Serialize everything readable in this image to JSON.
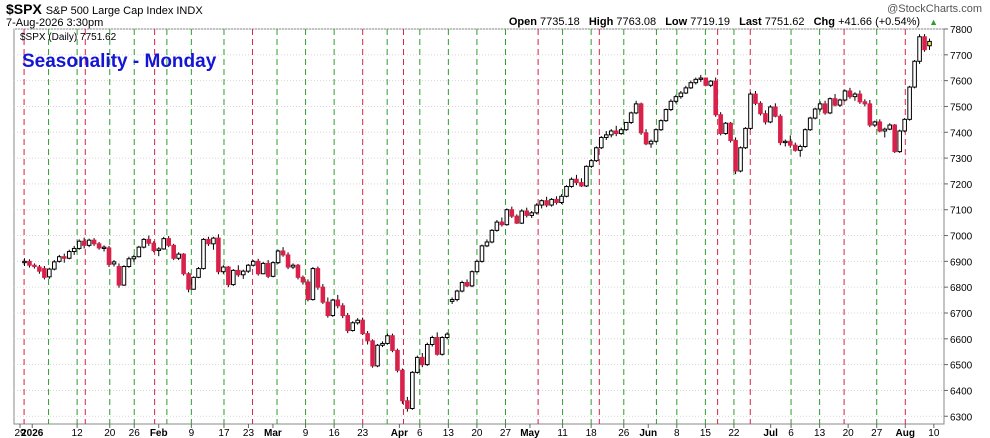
{
  "header": {
    "symbol": "$SPX",
    "description": "S&P 500 Large Cap Index INDX",
    "datetime": "7-Aug-2026 3:30pm",
    "watermark": "@StockCharts.com",
    "open_label": "Open",
    "open": "7735.18",
    "high_label": "High",
    "high": "7763.08",
    "low_label": "Low",
    "low": "7719.19",
    "last_label": "Last",
    "last": "7751.62",
    "chg_label": "Chg",
    "chg": "+41.66 (+0.54%)",
    "arrow": "▲"
  },
  "chart_data": {
    "type": "candlestick",
    "title": "Seasonality - Monday",
    "legend": "$SPX (Daily) 7751.62",
    "title_color": "#1515d6",
    "up_color": "#ffffff",
    "down_color": "#d9214a",
    "ylim": [
      6270,
      7800
    ],
    "yticks": [
      6300,
      6400,
      6500,
      6600,
      6700,
      6800,
      6900,
      7000,
      7100,
      7200,
      7300,
      7400,
      7500,
      7600,
      7700,
      7800
    ],
    "xticks": [
      {
        "label": "29",
        "day": 0
      },
      {
        "label": "2026",
        "day": 3,
        "bold": true
      },
      {
        "label": "12",
        "day": 14
      },
      {
        "label": "20",
        "day": 22
      },
      {
        "label": "26",
        "day": 28
      },
      {
        "label": "Feb",
        "day": 34,
        "bold": true
      },
      {
        "label": "9",
        "day": 42
      },
      {
        "label": "17",
        "day": 50
      },
      {
        "label": "23",
        "day": 56
      },
      {
        "label": "Mar",
        "day": 62,
        "bold": true
      },
      {
        "label": "9",
        "day": 70
      },
      {
        "label": "16",
        "day": 77
      },
      {
        "label": "23",
        "day": 84
      },
      {
        "label": "Apr",
        "day": 93,
        "bold": true
      },
      {
        "label": "6",
        "day": 98
      },
      {
        "label": "13",
        "day": 105
      },
      {
        "label": "20",
        "day": 112
      },
      {
        "label": "27",
        "day": 119
      },
      {
        "label": "May",
        "day": 125,
        "bold": true
      },
      {
        "label": "11",
        "day": 133
      },
      {
        "label": "18",
        "day": 140
      },
      {
        "label": "26",
        "day": 148
      },
      {
        "label": "Jun",
        "day": 154,
        "bold": true
      },
      {
        "label": "8",
        "day": 161
      },
      {
        "label": "15",
        "day": 168
      },
      {
        "label": "22",
        "day": 175
      },
      {
        "label": "Jul",
        "day": 184,
        "bold": true
      },
      {
        "label": "6",
        "day": 189
      },
      {
        "label": "13",
        "day": 196
      },
      {
        "label": "20",
        "day": 203
      },
      {
        "label": "27",
        "day": 210
      },
      {
        "label": "Aug",
        "day": 217,
        "bold": true
      },
      {
        "label": "10",
        "day": 224
      }
    ],
    "red_verticals": [
      1,
      16,
      33,
      57,
      84,
      94,
      127,
      142,
      171,
      179,
      202,
      217
    ],
    "green_verticals": [
      7,
      14,
      22,
      28,
      36,
      42,
      50,
      63,
      70,
      77,
      90,
      98,
      105,
      112,
      119,
      133,
      140,
      148,
      156,
      161,
      168,
      175,
      189,
      196,
      210
    ],
    "candles": [
      [
        0,
        6895,
        6912,
        6882,
        6900
      ],
      [
        1,
        6900,
        6908,
        6876,
        6885
      ],
      [
        2,
        6885,
        6892,
        6872,
        6880
      ],
      [
        3,
        6878,
        6886,
        6852,
        6862
      ],
      [
        4,
        6872,
        6882,
        6830,
        6838
      ],
      [
        5,
        6840,
        6875,
        6832,
        6870
      ],
      [
        6,
        6870,
        6905,
        6865,
        6898
      ],
      [
        7,
        6900,
        6925,
        6895,
        6918
      ],
      [
        8,
        6918,
        6930,
        6895,
        6912
      ],
      [
        9,
        6912,
        6945,
        6908,
        6938
      ],
      [
        10,
        6938,
        6960,
        6925,
        6950
      ],
      [
        11,
        6950,
        6985,
        6945,
        6978
      ],
      [
        12,
        6978,
        6992,
        6950,
        6962
      ],
      [
        13,
        6962,
        6988,
        6955,
        6982
      ],
      [
        14,
        6982,
        6990,
        6960,
        6968
      ],
      [
        15,
        6968,
        6975,
        6945,
        6952
      ],
      [
        16,
        6950,
        6962,
        6938,
        6955
      ],
      [
        17,
        6952,
        6960,
        6878,
        6888
      ],
      [
        18,
        6890,
        6905,
        6880,
        6898
      ],
      [
        19,
        6880,
        6892,
        6798,
        6808
      ],
      [
        20,
        6808,
        6885,
        6805,
        6880
      ],
      [
        21,
        6880,
        6918,
        6875,
        6910
      ],
      [
        22,
        6910,
        6925,
        6898,
        6918
      ],
      [
        23,
        6918,
        6960,
        6915,
        6955
      ],
      [
        24,
        6955,
        6990,
        6950,
        6985
      ],
      [
        25,
        6985,
        7000,
        6960,
        6970
      ],
      [
        26,
        6970,
        6978,
        6935,
        6942
      ],
      [
        27,
        6942,
        6955,
        6920,
        6948
      ],
      [
        28,
        6948,
        6995,
        6945,
        6988
      ],
      [
        29,
        6988,
        6998,
        6955,
        6962
      ],
      [
        30,
        6962,
        6968,
        6905,
        6912
      ],
      [
        31,
        6912,
        6935,
        6905,
        6928
      ],
      [
        32,
        6928,
        6932,
        6845,
        6852
      ],
      [
        33,
        6852,
        6858,
        6780,
        6792
      ],
      [
        34,
        6792,
        6842,
        6790,
        6838
      ],
      [
        35,
        6838,
        6878,
        6835,
        6872
      ],
      [
        36,
        6872,
        6990,
        6868,
        6985
      ],
      [
        37,
        6985,
        6995,
        6960,
        6968
      ],
      [
        38,
        6968,
        6995,
        6945,
        6990
      ],
      [
        39,
        6990,
        7005,
        6850,
        6860
      ],
      [
        40,
        6860,
        6885,
        6852,
        6878
      ],
      [
        41,
        6878,
        6882,
        6800,
        6810
      ],
      [
        42,
        6810,
        6870,
        6805,
        6865
      ],
      [
        43,
        6865,
        6885,
        6840,
        6848
      ],
      [
        44,
        6848,
        6868,
        6832,
        6862
      ],
      [
        45,
        6862,
        6890,
        6855,
        6885
      ],
      [
        46,
        6885,
        6905,
        6880,
        6900
      ],
      [
        47,
        6900,
        6910,
        6845,
        6852
      ],
      [
        48,
        6852,
        6898,
        6850,
        6892
      ],
      [
        49,
        6892,
        6905,
        6835,
        6842
      ],
      [
        50,
        6842,
        6900,
        6838,
        6895
      ],
      [
        51,
        6895,
        6945,
        6890,
        6940
      ],
      [
        52,
        6940,
        6955,
        6918,
        6925
      ],
      [
        53,
        6925,
        6935,
        6870,
        6878
      ],
      [
        54,
        6878,
        6892,
        6870,
        6885
      ],
      [
        55,
        6885,
        6890,
        6830,
        6838
      ],
      [
        56,
        6838,
        6845,
        6810,
        6820
      ],
      [
        57,
        6820,
        6830,
        6745,
        6752
      ],
      [
        58,
        6752,
        6878,
        6748,
        6872
      ],
      [
        59,
        6872,
        6880,
        6790,
        6800
      ],
      [
        60,
        6800,
        6812,
        6735,
        6742
      ],
      [
        61,
        6742,
        6760,
        6682,
        6690
      ],
      [
        62,
        6690,
        6755,
        6685,
        6750
      ],
      [
        63,
        6750,
        6770,
        6718,
        6728
      ],
      [
        64,
        6728,
        6738,
        6680,
        6690
      ],
      [
        65,
        6690,
        6700,
        6622,
        6632
      ],
      [
        66,
        6632,
        6668,
        6628,
        6662
      ],
      [
        67,
        6662,
        6680,
        6655,
        6672
      ],
      [
        68,
        6672,
        6682,
        6615,
        6620
      ],
      [
        69,
        6620,
        6630,
        6578,
        6592
      ],
      [
        70,
        6592,
        6598,
        6488,
        6495
      ],
      [
        71,
        6495,
        6580,
        6490,
        6575
      ],
      [
        72,
        6575,
        6590,
        6568,
        6582
      ],
      [
        73,
        6582,
        6620,
        6578,
        6612
      ],
      [
        74,
        6612,
        6620,
        6548,
        6555
      ],
      [
        75,
        6555,
        6562,
        6470,
        6478
      ],
      [
        76,
        6478,
        6485,
        6348,
        6360
      ],
      [
        77,
        6360,
        6375,
        6318,
        6330
      ],
      [
        78,
        6330,
        6475,
        6325,
        6470
      ],
      [
        79,
        6470,
        6535,
        6465,
        6528
      ],
      [
        80,
        6528,
        6545,
        6490,
        6500
      ],
      [
        81,
        6500,
        6585,
        6495,
        6578
      ],
      [
        82,
        6578,
        6612,
        6570,
        6605
      ],
      [
        83,
        6605,
        6625,
        6535,
        6540
      ],
      [
        84,
        6540,
        6610,
        6535,
        6605
      ],
      [
        85,
        6605,
        6625,
        6598,
        6618
      ],
      [
        86,
        6745,
        6760,
        6735,
        6752
      ],
      [
        87,
        6752,
        6790,
        6745,
        6785
      ],
      [
        88,
        6785,
        6825,
        6780,
        6818
      ],
      [
        89,
        6818,
        6830,
        6800,
        6805
      ],
      [
        90,
        6805,
        6865,
        6800,
        6860
      ],
      [
        91,
        6860,
        6905,
        6855,
        6900
      ],
      [
        92,
        6900,
        6965,
        6895,
        6960
      ],
      [
        93,
        6960,
        6985,
        6955,
        6975
      ],
      [
        94,
        6975,
        7025,
        6970,
        7020
      ],
      [
        95,
        7020,
        7060,
        7015,
        7052
      ],
      [
        96,
        7052,
        7070,
        7035,
        7042
      ],
      [
        97,
        7042,
        7105,
        7038,
        7100
      ],
      [
        98,
        7100,
        7112,
        7068,
        7075
      ],
      [
        99,
        7075,
        7082,
        7045,
        7048
      ],
      [
        100,
        7048,
        7102,
        7045,
        7095
      ],
      [
        101,
        7095,
        7108,
        7070,
        7078
      ],
      [
        102,
        7078,
        7095,
        7068,
        7088
      ],
      [
        103,
        7088,
        7125,
        7082,
        7118
      ],
      [
        104,
        7118,
        7140,
        7105,
        7135
      ],
      [
        105,
        7135,
        7150,
        7110,
        7118
      ],
      [
        106,
        7118,
        7145,
        7112,
        7140
      ],
      [
        107,
        7140,
        7152,
        7120,
        7128
      ],
      [
        108,
        7128,
        7160,
        7122,
        7152
      ],
      [
        109,
        7152,
        7195,
        7148,
        7190
      ],
      [
        110,
        7190,
        7225,
        7185,
        7218
      ],
      [
        111,
        7218,
        7235,
        7195,
        7205
      ],
      [
        112,
        7205,
        7222,
        7188,
        7192
      ],
      [
        113,
        7192,
        7272,
        7188,
        7268
      ],
      [
        114,
        7268,
        7295,
        7262,
        7290
      ],
      [
        115,
        7290,
        7345,
        7285,
        7340
      ],
      [
        116,
        7340,
        7385,
        7335,
        7380
      ],
      [
        117,
        7380,
        7405,
        7370,
        7390
      ],
      [
        118,
        7390,
        7412,
        7380,
        7405
      ],
      [
        119,
        7405,
        7425,
        7385,
        7395
      ],
      [
        120,
        7395,
        7418,
        7390,
        7410
      ],
      [
        121,
        7410,
        7440,
        7405,
        7438
      ],
      [
        122,
        7438,
        7480,
        7432,
        7475
      ],
      [
        123,
        7475,
        7522,
        7470,
        7510
      ],
      [
        124,
        7510,
        7515,
        7390,
        7398
      ],
      [
        125,
        7398,
        7412,
        7350,
        7355
      ],
      [
        126,
        7355,
        7372,
        7340,
        7365
      ],
      [
        127,
        7365,
        7415,
        7360,
        7410
      ],
      [
        128,
        7410,
        7450,
        7405,
        7445
      ],
      [
        129,
        7445,
        7492,
        7440,
        7488
      ],
      [
        130,
        7488,
        7528,
        7482,
        7520
      ],
      [
        131,
        7520,
        7545,
        7512,
        7538
      ],
      [
        132,
        7538,
        7560,
        7530,
        7552
      ],
      [
        133,
        7552,
        7580,
        7548,
        7572
      ],
      [
        134,
        7572,
        7600,
        7568,
        7592
      ],
      [
        135,
        7592,
        7612,
        7585,
        7605
      ],
      [
        136,
        7605,
        7622,
        7595,
        7610
      ],
      [
        137,
        7610,
        7612,
        7578,
        7582
      ],
      [
        138,
        7582,
        7602,
        7575,
        7598
      ],
      [
        139,
        7598,
        7612,
        7460,
        7468
      ],
      [
        140,
        7468,
        7478,
        7388,
        7395
      ],
      [
        141,
        7395,
        7440,
        7390,
        7435
      ],
      [
        142,
        7435,
        7440,
        7360,
        7368
      ],
      [
        143,
        7368,
        7380,
        7238,
        7250
      ],
      [
        144,
        7250,
        7345,
        7245,
        7340
      ],
      [
        145,
        7340,
        7420,
        7335,
        7415
      ],
      [
        146,
        7415,
        7555,
        7410,
        7548
      ],
      [
        147,
        7548,
        7560,
        7505,
        7512
      ],
      [
        148,
        7512,
        7520,
        7465,
        7472
      ],
      [
        149,
        7472,
        7485,
        7430,
        7440
      ],
      [
        150,
        7440,
        7505,
        7435,
        7498
      ],
      [
        151,
        7498,
        7512,
        7458,
        7462
      ],
      [
        152,
        7462,
        7470,
        7350,
        7360
      ],
      [
        153,
        7360,
        7372,
        7345,
        7365
      ],
      [
        154,
        7365,
        7388,
        7340,
        7350
      ],
      [
        155,
        7350,
        7360,
        7325,
        7330
      ],
      [
        156,
        7330,
        7352,
        7305,
        7345
      ],
      [
        157,
        7345,
        7415,
        7340,
        7410
      ],
      [
        158,
        7410,
        7460,
        7405,
        7455
      ],
      [
        159,
        7455,
        7495,
        7450,
        7490
      ],
      [
        160,
        7490,
        7520,
        7480,
        7510
      ],
      [
        161,
        7510,
        7522,
        7468,
        7475
      ],
      [
        162,
        7475,
        7535,
        7470,
        7530
      ],
      [
        163,
        7530,
        7548,
        7500,
        7505
      ],
      [
        164,
        7505,
        7530,
        7498,
        7525
      ],
      [
        165,
        7525,
        7565,
        7520,
        7560
      ],
      [
        166,
        7560,
        7572,
        7530,
        7538
      ],
      [
        167,
        7538,
        7555,
        7522,
        7548
      ],
      [
        168,
        7548,
        7562,
        7510,
        7518
      ],
      [
        169,
        7518,
        7528,
        7500,
        7510
      ],
      [
        170,
        7510,
        7525,
        7420,
        7428
      ],
      [
        171,
        7428,
        7445,
        7420,
        7440
      ],
      [
        172,
        7440,
        7450,
        7400,
        7405
      ],
      [
        173,
        7405,
        7418,
        7380,
        7412
      ],
      [
        174,
        7412,
        7435,
        7408,
        7428
      ],
      [
        175,
        7428,
        7432,
        7320,
        7325
      ],
      [
        176,
        7325,
        7410,
        7320,
        7405
      ],
      [
        177,
        7405,
        7455,
        7400,
        7450
      ],
      [
        178,
        7450,
        7580,
        7445,
        7575
      ],
      [
        179,
        7575,
        7680,
        7570,
        7675
      ],
      [
        180,
        7675,
        7780,
        7665,
        7770
      ],
      [
        181,
        7770,
        7780,
        7712,
        7720
      ],
      [
        182,
        7735,
        7763,
        7719,
        7752
      ]
    ]
  }
}
